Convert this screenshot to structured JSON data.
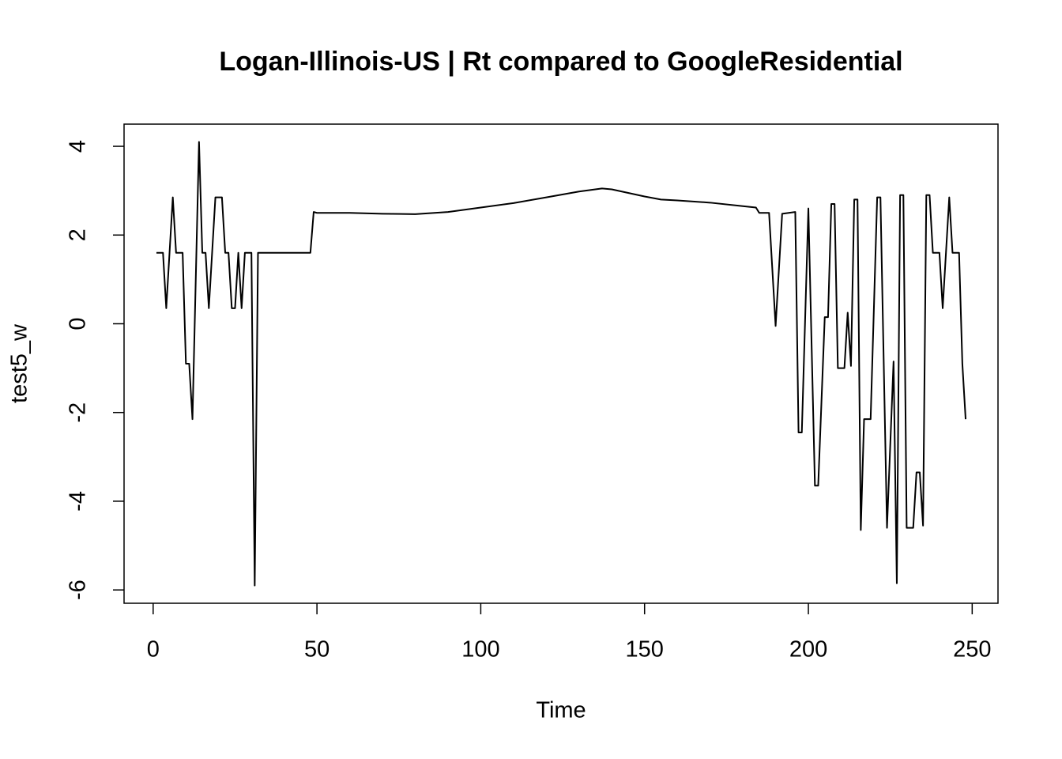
{
  "chart_data": {
    "type": "line",
    "title": "Logan-Illinois-US | Rt compared to GoogleResidential",
    "x_label": "Time",
    "y_label": "test5_w",
    "x": [
      1,
      2,
      3,
      4,
      6,
      7,
      9,
      10,
      11,
      12,
      14,
      15,
      16,
      17,
      19,
      21,
      22,
      23,
      24,
      25,
      26,
      27,
      28,
      30,
      31,
      32,
      48,
      49,
      50,
      60,
      70,
      80,
      90,
      100,
      110,
      120,
      130,
      137,
      140,
      145,
      150,
      155,
      160,
      170,
      180,
      184,
      185,
      188,
      190,
      192,
      196,
      197,
      198,
      200,
      202,
      203,
      205,
      206,
      207,
      208,
      209,
      211,
      212,
      213,
      214,
      215,
      216,
      217,
      219,
      221,
      222,
      224,
      226,
      227,
      228,
      229,
      230,
      232,
      233,
      234,
      235,
      236,
      237,
      238,
      240,
      241,
      243,
      244,
      246,
      247,
      248
    ],
    "series": [
      {
        "name": "test5_w",
        "color": "#000000",
        "values": [
          1.6,
          1.6,
          1.6,
          0.35,
          2.85,
          1.6,
          1.6,
          -0.9,
          -0.9,
          -2.15,
          4.1,
          1.6,
          1.6,
          0.35,
          2.85,
          2.85,
          1.6,
          1.6,
          0.35,
          0.35,
          1.6,
          0.35,
          1.6,
          1.6,
          -5.9,
          1.6,
          1.6,
          2.52,
          2.5,
          2.5,
          2.48,
          2.47,
          2.52,
          2.62,
          2.72,
          2.85,
          2.98,
          3.05,
          3.03,
          2.95,
          2.87,
          2.8,
          2.78,
          2.73,
          2.65,
          2.62,
          2.5,
          2.5,
          -0.05,
          2.48,
          2.52,
          -2.45,
          -2.45,
          2.6,
          -3.65,
          -3.65,
          0.15,
          0.15,
          2.7,
          2.7,
          -1.0,
          -1.0,
          0.25,
          -0.95,
          2.8,
          2.8,
          -4.65,
          -2.15,
          -2.15,
          2.85,
          2.85,
          -4.6,
          -0.85,
          -5.85,
          2.9,
          2.9,
          -4.6,
          -4.6,
          -3.35,
          -3.35,
          -4.55,
          2.9,
          2.9,
          1.6,
          1.6,
          0.35,
          2.85,
          1.6,
          1.6,
          -0.9,
          -2.15
        ]
      }
    ],
    "xlim": [
      -8.88,
      257.88
    ],
    "xticks": [
      0,
      50,
      100,
      150,
      200,
      250
    ],
    "ylim": [
      -6.3,
      4.5
    ],
    "yticks": [
      -6,
      -4,
      -2,
      0,
      2,
      4
    ]
  }
}
